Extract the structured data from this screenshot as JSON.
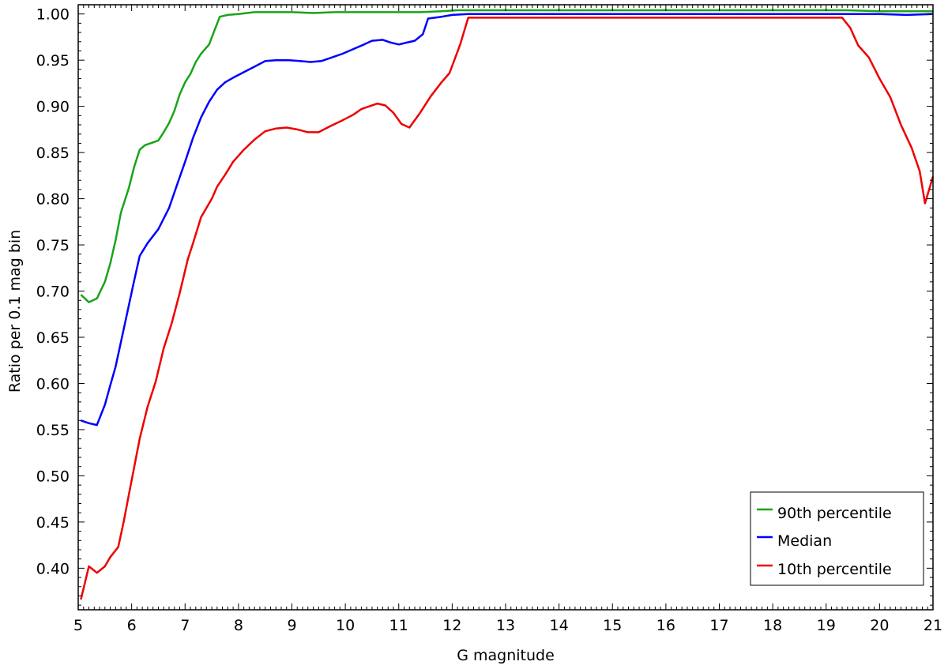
{
  "chart_data": {
    "type": "line",
    "title": "",
    "xlabel": "G magnitude",
    "ylabel": "Ratio per 0.1 mag bin",
    "xlim": [
      5,
      21
    ],
    "ylim": [
      0.355,
      1.01
    ],
    "x_ticks": [
      "5",
      "6",
      "7",
      "8",
      "9",
      "10",
      "11",
      "12",
      "13",
      "14",
      "15",
      "16",
      "17",
      "18",
      "19",
      "20",
      "21"
    ],
    "y_ticks": [
      "0.40",
      "0.45",
      "0.50",
      "0.55",
      "0.60",
      "0.65",
      "0.70",
      "0.75",
      "0.80",
      "0.85",
      "0.90",
      "0.95",
      "1.00"
    ],
    "grid": false,
    "legend_position": "bottom-right",
    "series": [
      {
        "name": "90th percentile",
        "color": "#1aa31a",
        "x": [
          5.05,
          5.2,
          5.35,
          5.5,
          5.6,
          5.7,
          5.8,
          5.95,
          6.05,
          6.15,
          6.25,
          6.4,
          6.5,
          6.6,
          6.7,
          6.8,
          6.9,
          7.0,
          7.1,
          7.2,
          7.3,
          7.45,
          7.55,
          7.65,
          7.8,
          8.0,
          8.3,
          8.6,
          9.0,
          9.4,
          9.8,
          10.2,
          10.6,
          11.0,
          11.4,
          11.8,
          12.1,
          12.5,
          13,
          14,
          15,
          16,
          17,
          18,
          19,
          19.4,
          20,
          20.5,
          21
        ],
        "values": [
          0.696,
          0.688,
          0.692,
          0.71,
          0.73,
          0.755,
          0.785,
          0.812,
          0.835,
          0.853,
          0.858,
          0.861,
          0.863,
          0.872,
          0.882,
          0.895,
          0.913,
          0.926,
          0.935,
          0.948,
          0.957,
          0.967,
          0.982,
          0.997,
          0.999,
          1.0,
          1.002,
          1.002,
          1.002,
          1.001,
          1.002,
          1.002,
          1.002,
          1.002,
          1.002,
          1.003,
          1.004,
          1.004,
          1.004,
          1.004,
          1.004,
          1.004,
          1.004,
          1.004,
          1.004,
          1.004,
          1.003,
          1.003,
          1.003
        ]
      },
      {
        "name": "Median",
        "color": "#0000ff",
        "x": [
          5.05,
          5.2,
          5.35,
          5.5,
          5.6,
          5.7,
          5.8,
          5.95,
          6.05,
          6.15,
          6.3,
          6.5,
          6.7,
          6.85,
          7.0,
          7.15,
          7.3,
          7.45,
          7.6,
          7.75,
          7.9,
          8.1,
          8.3,
          8.5,
          8.7,
          8.95,
          9.15,
          9.35,
          9.55,
          9.75,
          9.95,
          10.15,
          10.35,
          10.5,
          10.7,
          10.85,
          11.0,
          11.15,
          11.3,
          11.45,
          11.55,
          11.8,
          12.0,
          12.3,
          13,
          14,
          15,
          16,
          17,
          18,
          19,
          19.5,
          20,
          20.5,
          21
        ],
        "values": [
          0.56,
          0.557,
          0.555,
          0.577,
          0.598,
          0.618,
          0.645,
          0.685,
          0.712,
          0.738,
          0.752,
          0.767,
          0.79,
          0.815,
          0.84,
          0.866,
          0.888,
          0.905,
          0.918,
          0.926,
          0.931,
          0.937,
          0.943,
          0.949,
          0.95,
          0.95,
          0.949,
          0.948,
          0.949,
          0.953,
          0.957,
          0.962,
          0.967,
          0.971,
          0.972,
          0.969,
          0.967,
          0.969,
          0.971,
          0.978,
          0.995,
          0.997,
          0.999,
          1.0,
          1.0,
          1.0,
          1.0,
          1.0,
          1.0,
          1.0,
          1.0,
          1.0,
          1.0,
          0.999,
          1.0
        ]
      },
      {
        "name": "10th percentile",
        "color": "#ee0000",
        "x": [
          5.05,
          5.2,
          5.35,
          5.5,
          5.6,
          5.75,
          5.85,
          5.95,
          6.05,
          6.15,
          6.3,
          6.45,
          6.6,
          6.75,
          6.9,
          7.05,
          7.15,
          7.3,
          7.5,
          7.6,
          7.75,
          7.9,
          8.1,
          8.3,
          8.5,
          8.7,
          8.9,
          9.1,
          9.3,
          9.5,
          9.7,
          9.95,
          10.15,
          10.3,
          10.45,
          10.6,
          10.75,
          10.9,
          11.05,
          11.2,
          11.4,
          11.6,
          11.8,
          11.95,
          12.15,
          12.3,
          13,
          14,
          15,
          16,
          17,
          18,
          19,
          19.3,
          19.45,
          19.6,
          19.8,
          20.0,
          20.2,
          20.4,
          20.6,
          20.75,
          20.85,
          21.0
        ],
        "values": [
          0.366,
          0.402,
          0.395,
          0.402,
          0.412,
          0.423,
          0.45,
          0.48,
          0.51,
          0.54,
          0.575,
          0.602,
          0.638,
          0.665,
          0.698,
          0.734,
          0.752,
          0.78,
          0.8,
          0.813,
          0.826,
          0.84,
          0.853,
          0.864,
          0.873,
          0.876,
          0.877,
          0.875,
          0.872,
          0.872,
          0.878,
          0.885,
          0.891,
          0.897,
          0.9,
          0.903,
          0.901,
          0.893,
          0.881,
          0.877,
          0.893,
          0.911,
          0.926,
          0.936,
          0.967,
          0.996,
          0.996,
          0.996,
          0.996,
          0.996,
          0.996,
          0.996,
          0.996,
          0.996,
          0.985,
          0.966,
          0.953,
          0.93,
          0.91,
          0.88,
          0.855,
          0.83,
          0.795,
          0.824
        ]
      }
    ]
  }
}
